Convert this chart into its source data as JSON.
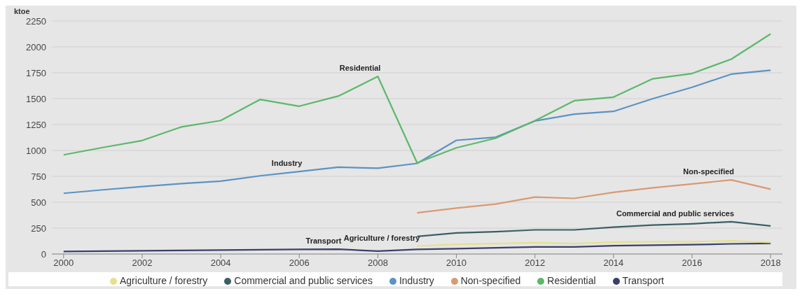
{
  "chart_data": {
    "type": "line",
    "ylabel": "ktoe",
    "x": [
      2000,
      2001,
      2002,
      2003,
      2004,
      2005,
      2006,
      2007,
      2008,
      2009,
      2010,
      2011,
      2012,
      2013,
      2014,
      2015,
      2016,
      2017,
      2018
    ],
    "xlim": [
      1999.7,
      2018.3
    ],
    "xticks": [
      2000,
      2002,
      2004,
      2006,
      2008,
      2010,
      2012,
      2014,
      2016,
      2018
    ],
    "ylim": [
      0,
      2250
    ],
    "yticks": [
      0,
      250,
      500,
      750,
      1000,
      1250,
      1500,
      1750,
      2000,
      2250
    ],
    "grid": "y",
    "legend": "bottom",
    "marker": "none",
    "line_style": "solid",
    "series": [
      {
        "name": "Industry",
        "color": "#5b93c4",
        "values": [
          586,
          620,
          651,
          680,
          703,
          755,
          797,
          839,
          828,
          875,
          1098,
          1128,
          1285,
          1350,
          1377,
          1500,
          1610,
          1737,
          1775
        ]
      },
      {
        "name": "Transport",
        "color": "#3a3f6e",
        "values": [
          25,
          28,
          31,
          35,
          38,
          42,
          45,
          47,
          28,
          45,
          52,
          60,
          68,
          68,
          80,
          85,
          90,
          98,
          102
        ]
      },
      {
        "name": "Residential",
        "color": "#5cb86a",
        "values": [
          958,
          1029,
          1096,
          1227,
          1289,
          1492,
          1427,
          1526,
          1714,
          880,
          1025,
          1118,
          1287,
          1480,
          1515,
          1692,
          1743,
          1882,
          2125
        ]
      },
      {
        "name": "Commercial and public services",
        "color": "#3b5f66",
        "values": [
          null,
          null,
          null,
          null,
          null,
          null,
          null,
          null,
          null,
          170,
          203,
          215,
          233,
          233,
          259,
          279,
          292,
          312,
          271
        ]
      },
      {
        "name": "Agriculture / forestry",
        "color": "#e6e08a",
        "values": [
          null,
          null,
          null,
          null,
          null,
          null,
          null,
          null,
          null,
          76,
          94,
          101,
          109,
          101,
          114,
          119,
          119,
          127,
          112
        ]
      },
      {
        "name": "Non-specified",
        "color": "#d99a72",
        "values": [
          null,
          null,
          null,
          null,
          null,
          null,
          null,
          null,
          null,
          398,
          444,
          482,
          550,
          537,
          596,
          639,
          677,
          715,
          626
        ]
      }
    ],
    "annotations": [
      {
        "text": "Residential",
        "x": 2008,
        "y": 1714
      },
      {
        "text": "Industry",
        "x": 2006,
        "y": 797
      },
      {
        "text": "Non-specified",
        "x": 2017,
        "y": 715
      },
      {
        "text": "Commercial and public services",
        "x": 2017,
        "y": 312
      },
      {
        "text": "Agriculture / forestry",
        "x": 2009,
        "y": 76
      },
      {
        "text": "Transport",
        "x": 2007,
        "y": 47
      }
    ]
  }
}
